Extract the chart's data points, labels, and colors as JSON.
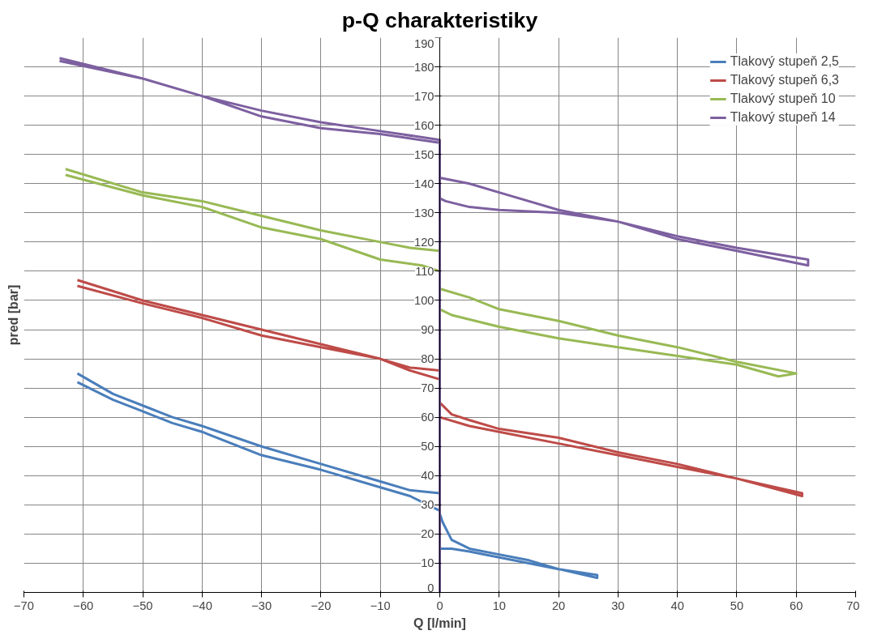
{
  "chart_data": {
    "type": "line",
    "title": "p-Q charakteristiky",
    "xlabel": "Q [l/min]",
    "ylabel": "pred [bar]",
    "xlim": [
      -70,
      70
    ],
    "xticks": [
      -70,
      -60,
      -50,
      -40,
      -30,
      -20,
      -10,
      0,
      10,
      20,
      30,
      40,
      50,
      60,
      70
    ],
    "ylim": [
      0,
      190
    ],
    "yticks": [
      0,
      10,
      20,
      30,
      40,
      50,
      60,
      70,
      80,
      90,
      100,
      110,
      120,
      130,
      140,
      150,
      160,
      170,
      180,
      190
    ],
    "grid": true,
    "legend": "top right",
    "marker": "none",
    "line_style": "solid",
    "series": [
      {
        "name": "Tlakový stupeň 2,5",
        "color": "#4a7ebb",
        "x": [
          -61,
          -55,
          -50,
          -45,
          -40,
          -30,
          -20,
          -10,
          -5,
          0,
          0,
          0,
          2,
          5,
          10,
          15,
          20,
          26.5,
          26.5,
          20,
          15,
          10,
          5,
          2,
          0.5,
          0,
          0,
          -5,
          -10,
          -20,
          -30,
          -40,
          -45,
          -50,
          -55,
          -61
        ],
        "values": [
          72,
          66,
          62,
          58,
          55,
          47,
          42,
          36,
          33,
          28,
          17,
          15,
          15,
          14,
          12,
          10,
          8,
          5,
          6,
          8,
          11,
          13,
          15,
          18,
          24,
          27,
          34,
          35,
          38,
          44,
          50,
          57,
          60,
          64,
          68,
          75
        ]
      },
      {
        "name": "Tlakový stupeň 6,3",
        "color": "#be4b48",
        "x": [
          -61,
          -50,
          -40,
          -30,
          -20,
          -10,
          -5,
          0,
          0,
          0,
          5,
          10,
          20,
          30,
          40,
          50,
          61,
          61,
          50,
          40,
          30,
          20,
          10,
          5,
          2,
          0,
          0,
          -5,
          -10,
          -20,
          -30,
          -40,
          -50,
          -61
        ],
        "values": [
          105,
          99,
          94,
          88,
          84,
          80,
          76,
          73,
          18,
          60,
          57,
          55,
          51,
          47,
          43,
          39,
          33,
          34,
          39,
          44,
          48,
          53,
          56,
          59,
          61,
          65,
          76,
          77,
          80,
          85,
          90,
          95,
          100,
          107
        ]
      },
      {
        "name": "Tlakový stupeň 10",
        "color": "#98b954",
        "x": [
          -63,
          -50,
          -40,
          -30,
          -20,
          -10,
          -3,
          0,
          0,
          0,
          2,
          10,
          20,
          30,
          40,
          50,
          57,
          60,
          50,
          40,
          30,
          20,
          10,
          5,
          0,
          0,
          -5,
          -10,
          -20,
          -30,
          -40,
          -50,
          -63
        ],
        "values": [
          143,
          136,
          132,
          125,
          121,
          114,
          112,
          110,
          75,
          97,
          95,
          91,
          87,
          84,
          81,
          78,
          74,
          75,
          79,
          84,
          88,
          93,
          97,
          101,
          104,
          117,
          118,
          120,
          124,
          129,
          134,
          137,
          145
        ]
      },
      {
        "name": "Tlakový stupeň 14",
        "color": "#7d60a0",
        "x": [
          -64,
          -50,
          -40,
          -30,
          -20,
          -10,
          0,
          0,
          0,
          1,
          5,
          10,
          20,
          30,
          40,
          50,
          62,
          62,
          50,
          40,
          30,
          20,
          10,
          5,
          0,
          0,
          -10,
          -20,
          -30,
          -40,
          -50,
          -64
        ],
        "values": [
          182,
          176,
          170,
          163,
          159,
          157,
          154,
          0,
          135,
          134,
          132,
          131,
          130,
          127,
          121,
          117,
          112,
          114,
          118,
          122,
          127,
          131,
          137,
          140,
          142,
          155,
          158,
          161,
          165,
          170,
          176,
          183
        ]
      }
    ]
  }
}
